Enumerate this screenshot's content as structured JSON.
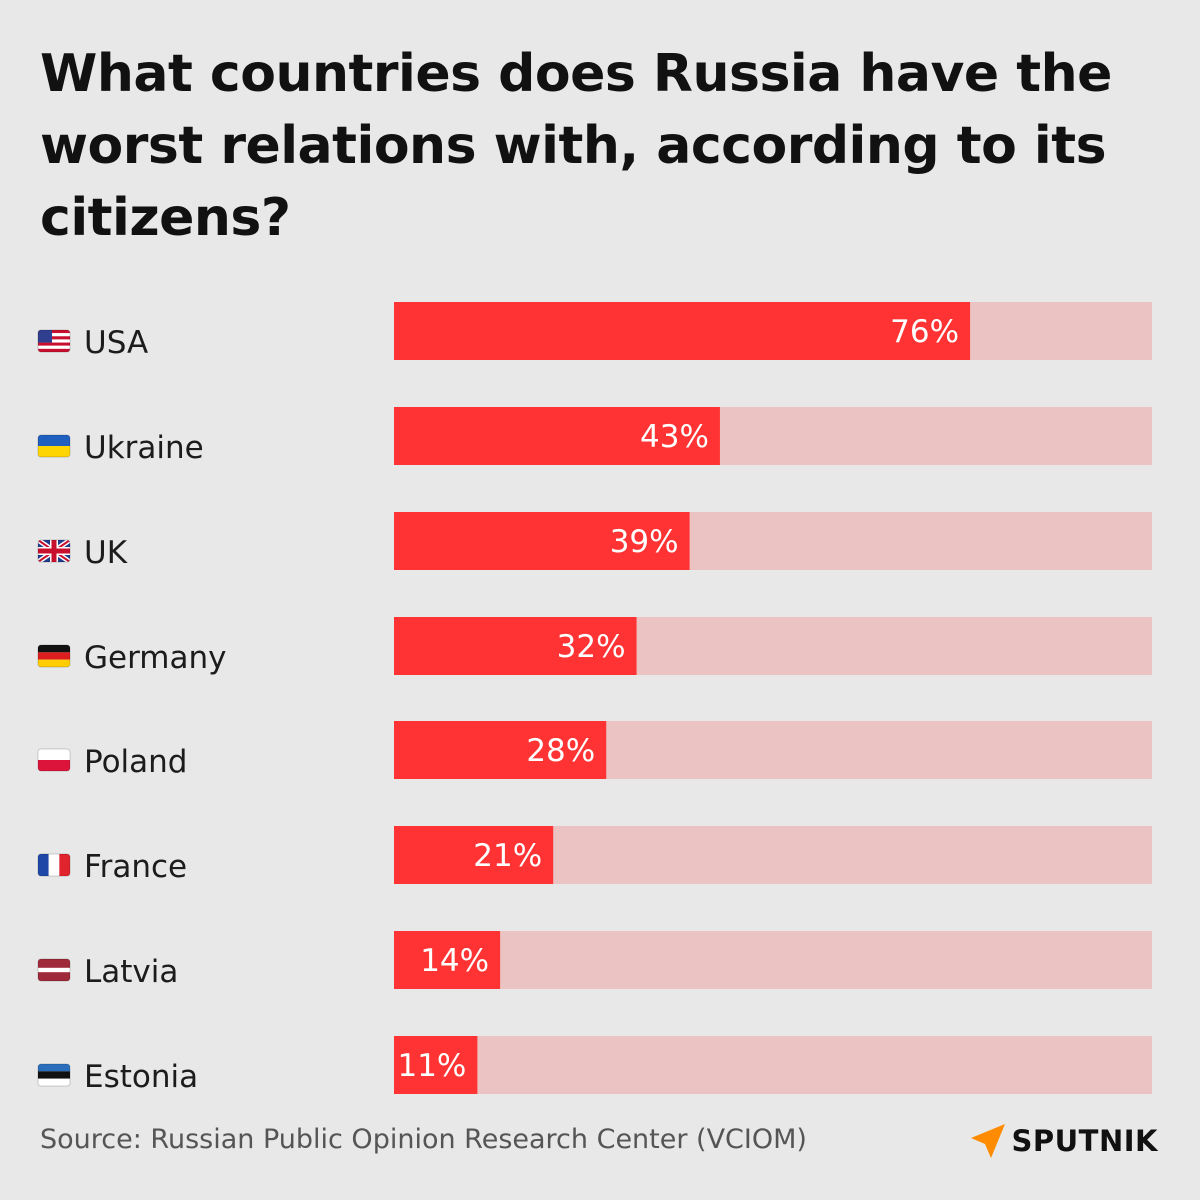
{
  "chart_data": {
    "type": "bar",
    "orientation": "horizontal",
    "title": "What countries does Russia have the worst relations with, according to its citizens?",
    "categories": [
      "USA",
      "Ukraine",
      "UK",
      "Germany",
      "Poland",
      "France",
      "Latvia",
      "Estonia"
    ],
    "values": [
      76,
      43,
      39,
      32,
      28,
      21,
      14,
      11
    ],
    "value_labels": [
      "76%",
      "43%",
      "39%",
      "32%",
      "28%",
      "21%",
      "14%",
      "11%"
    ],
    "unit": "%",
    "xlim": [
      0,
      100
    ],
    "flags": [
      "flag-usa-icon",
      "flag-ukraine-icon",
      "flag-uk-icon",
      "flag-germany-icon",
      "flag-poland-icon",
      "flag-france-icon",
      "flag-latvia-icon",
      "flag-estonia-icon"
    ],
    "colors": {
      "bar": "#ff3333",
      "track": "#ebc3c3",
      "background": "#e8e8e8"
    },
    "grid": false,
    "legend": "none"
  },
  "source": "Source: Russian Public Opinion Research Center (VCIOM)",
  "brand": {
    "name": "SPUTNIK",
    "accent": "#ff8c00"
  }
}
